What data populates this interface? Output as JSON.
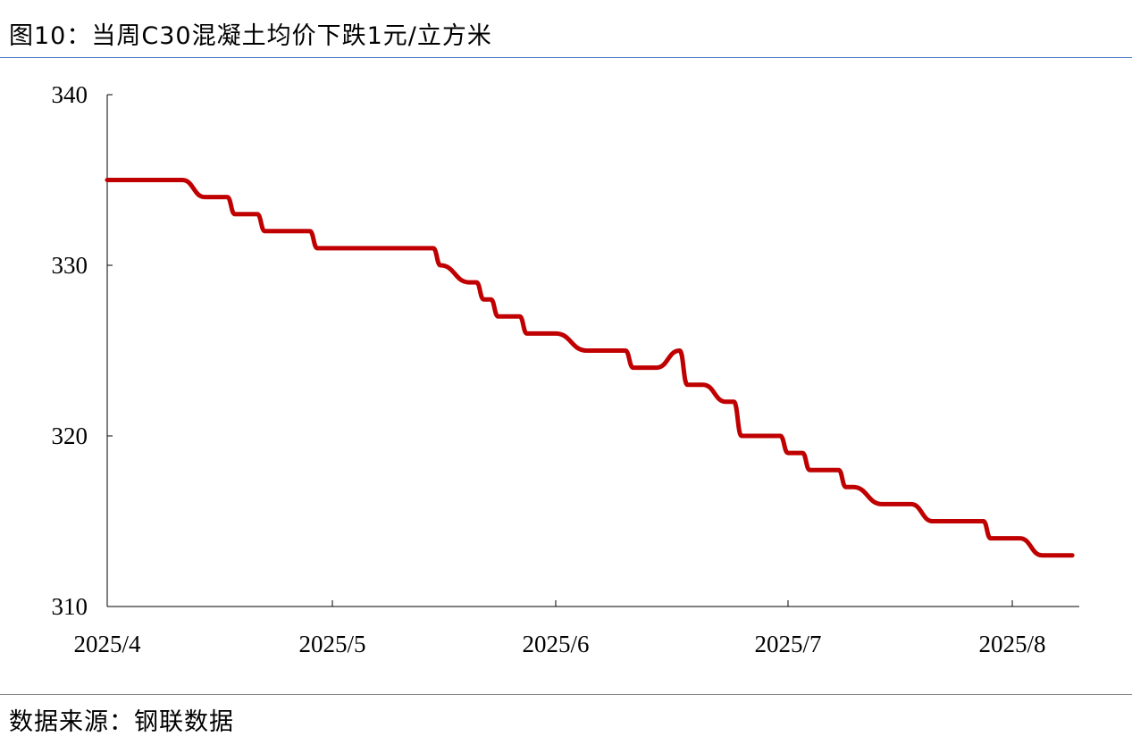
{
  "title": "图10：当周C30混凝土均价下跌1元/立方米",
  "source": "数据来源：钢联数据",
  "chart_data": {
    "type": "line",
    "title": "图10：当周C30混凝土均价下跌1元/立方米",
    "xlabel": "",
    "ylabel": "",
    "ylim": [
      310,
      340
    ],
    "yticks": [
      "310",
      "320",
      "330",
      "340"
    ],
    "xticks": [
      "2025/4",
      "2025/5",
      "2025/6",
      "2025/7",
      "2025/8"
    ],
    "grid": false,
    "legend": "none",
    "color": "#c00000",
    "series": [
      {
        "points": [
          [
            "2025-04-01",
            335
          ],
          [
            "2025-04-11",
            335
          ],
          [
            "2025-04-14",
            334
          ],
          [
            "2025-04-17",
            334
          ],
          [
            "2025-04-18",
            333
          ],
          [
            "2025-04-21",
            333
          ],
          [
            "2025-04-22",
            332
          ],
          [
            "2025-04-28",
            332
          ],
          [
            "2025-04-29",
            331
          ],
          [
            "2025-05-15",
            331
          ],
          [
            "2025-05-16",
            330
          ],
          [
            "2025-05-20",
            329
          ],
          [
            "2025-05-21",
            329
          ],
          [
            "2025-05-22",
            328
          ],
          [
            "2025-05-23",
            328
          ],
          [
            "2025-05-24",
            327
          ],
          [
            "2025-05-27",
            327
          ],
          [
            "2025-05-28",
            326
          ],
          [
            "2025-06-01",
            326
          ],
          [
            "2025-06-05",
            325
          ],
          [
            "2025-06-10",
            325
          ],
          [
            "2025-06-11",
            324
          ],
          [
            "2025-06-14",
            324
          ],
          [
            "2025-06-17",
            325
          ],
          [
            "2025-06-18",
            323
          ],
          [
            "2025-06-20",
            323
          ],
          [
            "2025-06-23",
            322
          ],
          [
            "2025-06-24",
            322
          ],
          [
            "2025-06-25",
            320
          ],
          [
            "2025-06-30",
            320
          ],
          [
            "2025-07-01",
            319
          ],
          [
            "2025-07-03",
            319
          ],
          [
            "2025-07-04",
            318
          ],
          [
            "2025-07-08",
            318
          ],
          [
            "2025-07-09",
            317
          ],
          [
            "2025-07-10",
            317
          ],
          [
            "2025-07-14",
            316
          ],
          [
            "2025-07-18",
            316
          ],
          [
            "2025-07-21",
            315
          ],
          [
            "2025-07-28",
            315
          ],
          [
            "2025-07-29",
            314
          ],
          [
            "2025-08-02",
            314
          ],
          [
            "2025-08-05",
            313
          ],
          [
            "2025-08-09",
            313
          ]
        ]
      }
    ]
  }
}
